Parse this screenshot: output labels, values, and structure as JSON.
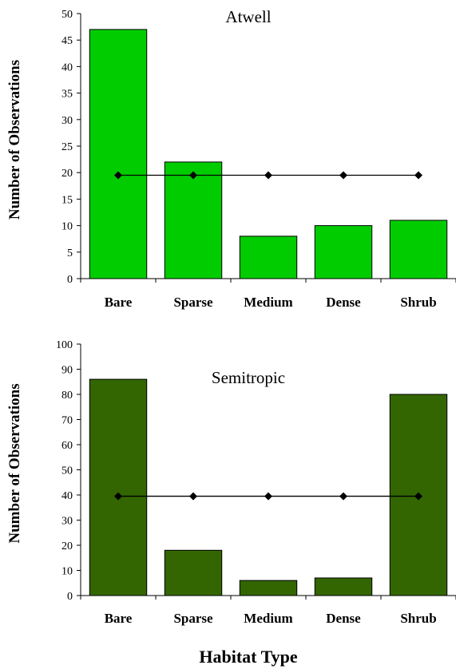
{
  "chart_data": [
    {
      "type": "bar",
      "title": "Atwell",
      "ylabel": "Number of Observations",
      "xlabel": "",
      "categories": [
        "Bare",
        "Sparse",
        "Medium",
        "Dense",
        "Shrub"
      ],
      "series": [
        {
          "type": "bar",
          "values": [
            47,
            22,
            8,
            10,
            11
          ],
          "color": "#00cc00"
        },
        {
          "type": "line",
          "values": [
            19.5,
            19.5,
            19.5,
            19.5,
            19.5
          ],
          "color": "#000000"
        }
      ],
      "ylim": [
        0,
        50
      ],
      "yticks": [
        0,
        5,
        10,
        15,
        20,
        25,
        30,
        35,
        40,
        45,
        50
      ],
      "grid": false
    },
    {
      "type": "bar",
      "title": "Semitropic",
      "ylabel": "Number of Observations",
      "xlabel": "Habitat Type",
      "categories": [
        "Bare",
        "Sparse",
        "Medium",
        "Dense",
        "Shrub"
      ],
      "series": [
        {
          "type": "bar",
          "values": [
            86,
            18,
            6,
            7,
            80
          ],
          "color": "#336600"
        },
        {
          "type": "line",
          "values": [
            39.5,
            39.5,
            39.5,
            39.5,
            39.5
          ],
          "color": "#000000"
        }
      ],
      "ylim": [
        0,
        100
      ],
      "yticks": [
        0,
        10,
        20,
        30,
        40,
        50,
        60,
        70,
        80,
        90,
        100
      ],
      "grid": false
    }
  ]
}
